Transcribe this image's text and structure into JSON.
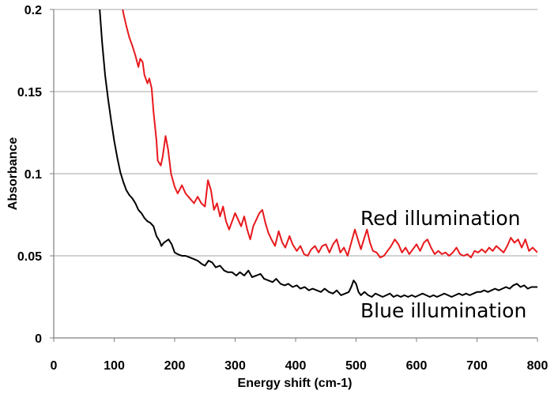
{
  "chart_data": {
    "type": "line",
    "title": "",
    "xlabel": "Energy shift (cm-1)",
    "ylabel": "Absorbance",
    "xlim": [
      0,
      800
    ],
    "ylim": [
      0,
      0.2
    ],
    "xticks": [
      0,
      100,
      200,
      300,
      400,
      500,
      600,
      700,
      800
    ],
    "yticks": [
      0,
      0.05,
      0.1,
      0.15,
      0.2
    ],
    "xtick_labels": [
      "0",
      "100",
      "200",
      "300",
      "400",
      "500",
      "600",
      "700",
      "800"
    ],
    "ytick_labels": [
      "0",
      "0.05",
      "0.1",
      "0.15",
      "0.2"
    ],
    "grid": "horizontal",
    "legend": "none",
    "annotations": [
      {
        "text": "Red illumination",
        "series": "Red illumination"
      },
      {
        "text": "Blue illumination",
        "series": "Blue illumination"
      }
    ],
    "series": [
      {
        "name": "Red illumination",
        "color": "#e8191d",
        "points": [
          [
            112,
            0.205
          ],
          [
            115,
            0.198
          ],
          [
            120,
            0.19
          ],
          [
            125,
            0.183
          ],
          [
            130,
            0.178
          ],
          [
            135,
            0.172
          ],
          [
            140,
            0.165
          ],
          [
            143,
            0.17
          ],
          [
            147,
            0.168
          ],
          [
            150,
            0.16
          ],
          [
            155,
            0.155
          ],
          [
            158,
            0.158
          ],
          [
            162,
            0.152
          ],
          [
            165,
            0.138
          ],
          [
            170,
            0.12
          ],
          [
            172,
            0.108
          ],
          [
            177,
            0.105
          ],
          [
            180,
            0.11
          ],
          [
            185,
            0.123
          ],
          [
            189,
            0.115
          ],
          [
            194,
            0.1
          ],
          [
            200,
            0.092
          ],
          [
            205,
            0.088
          ],
          [
            212,
            0.093
          ],
          [
            218,
            0.088
          ],
          [
            225,
            0.085
          ],
          [
            232,
            0.082
          ],
          [
            238,
            0.086
          ],
          [
            244,
            0.082
          ],
          [
            250,
            0.08
          ],
          [
            255,
            0.096
          ],
          [
            260,
            0.09
          ],
          [
            265,
            0.078
          ],
          [
            270,
            0.082
          ],
          [
            275,
            0.074
          ],
          [
            280,
            0.08
          ],
          [
            285,
            0.071
          ],
          [
            290,
            0.066
          ],
          [
            295,
            0.071
          ],
          [
            300,
            0.076
          ],
          [
            305,
            0.072
          ],
          [
            310,
            0.068
          ],
          [
            315,
            0.074
          ],
          [
            320,
            0.066
          ],
          [
            325,
            0.06
          ],
          [
            330,
            0.068
          ],
          [
            335,
            0.072
          ],
          [
            340,
            0.076
          ],
          [
            345,
            0.078
          ],
          [
            350,
            0.07
          ],
          [
            355,
            0.064
          ],
          [
            360,
            0.06
          ],
          [
            366,
            0.056
          ],
          [
            372,
            0.065
          ],
          [
            378,
            0.058
          ],
          [
            383,
            0.055
          ],
          [
            390,
            0.062
          ],
          [
            395,
            0.057
          ],
          [
            402,
            0.053
          ],
          [
            408,
            0.056
          ],
          [
            414,
            0.051
          ],
          [
            420,
            0.05
          ],
          [
            426,
            0.054
          ],
          [
            432,
            0.056
          ],
          [
            438,
            0.052
          ],
          [
            444,
            0.056
          ],
          [
            450,
            0.057
          ],
          [
            456,
            0.052
          ],
          [
            462,
            0.057
          ],
          [
            468,
            0.06
          ],
          [
            474,
            0.052
          ],
          [
            480,
            0.055
          ],
          [
            486,
            0.05
          ],
          [
            492,
            0.058
          ],
          [
            498,
            0.066
          ],
          [
            503,
            0.06
          ],
          [
            508,
            0.054
          ],
          [
            513,
            0.06
          ],
          [
            518,
            0.066
          ],
          [
            523,
            0.058
          ],
          [
            528,
            0.053
          ],
          [
            534,
            0.052
          ],
          [
            540,
            0.049
          ],
          [
            546,
            0.05
          ],
          [
            552,
            0.053
          ],
          [
            558,
            0.056
          ],
          [
            564,
            0.06
          ],
          [
            570,
            0.057
          ],
          [
            576,
            0.052
          ],
          [
            582,
            0.055
          ],
          [
            588,
            0.051
          ],
          [
            594,
            0.054
          ],
          [
            600,
            0.057
          ],
          [
            606,
            0.053
          ],
          [
            612,
            0.058
          ],
          [
            618,
            0.06
          ],
          [
            624,
            0.055
          ],
          [
            630,
            0.051
          ],
          [
            636,
            0.053
          ],
          [
            642,
            0.051
          ],
          [
            648,
            0.052
          ],
          [
            654,
            0.05
          ],
          [
            660,
            0.052
          ],
          [
            666,
            0.055
          ],
          [
            672,
            0.051
          ],
          [
            678,
            0.05
          ],
          [
            684,
            0.051
          ],
          [
            690,
            0.049
          ],
          [
            696,
            0.053
          ],
          [
            702,
            0.052
          ],
          [
            708,
            0.054
          ],
          [
            714,
            0.052
          ],
          [
            720,
            0.055
          ],
          [
            726,
            0.053
          ],
          [
            732,
            0.056
          ],
          [
            738,
            0.054
          ],
          [
            744,
            0.052
          ],
          [
            750,
            0.056
          ],
          [
            756,
            0.061
          ],
          [
            762,
            0.058
          ],
          [
            768,
            0.06
          ],
          [
            774,
            0.055
          ],
          [
            780,
            0.06
          ],
          [
            786,
            0.053
          ],
          [
            792,
            0.055
          ],
          [
            800,
            0.052
          ]
        ]
      },
      {
        "name": "Blue illumination",
        "color": "#000000",
        "points": [
          [
            75,
            0.205
          ],
          [
            80,
            0.18
          ],
          [
            85,
            0.16
          ],
          [
            90,
            0.145
          ],
          [
            95,
            0.132
          ],
          [
            100,
            0.12
          ],
          [
            105,
            0.11
          ],
          [
            110,
            0.101
          ],
          [
            115,
            0.095
          ],
          [
            120,
            0.09
          ],
          [
            125,
            0.087
          ],
          [
            130,
            0.085
          ],
          [
            135,
            0.082
          ],
          [
            140,
            0.078
          ],
          [
            145,
            0.076
          ],
          [
            150,
            0.073
          ],
          [
            155,
            0.071
          ],
          [
            160,
            0.07
          ],
          [
            165,
            0.068
          ],
          [
            170,
            0.062
          ],
          [
            175,
            0.059
          ],
          [
            178,
            0.056
          ],
          [
            182,
            0.058
          ],
          [
            186,
            0.059
          ],
          [
            190,
            0.06
          ],
          [
            195,
            0.057
          ],
          [
            200,
            0.052
          ],
          [
            205,
            0.051
          ],
          [
            212,
            0.05
          ],
          [
            218,
            0.05
          ],
          [
            225,
            0.049
          ],
          [
            232,
            0.048
          ],
          [
            238,
            0.047
          ],
          [
            245,
            0.045
          ],
          [
            250,
            0.044
          ],
          [
            256,
            0.047
          ],
          [
            262,
            0.046
          ],
          [
            268,
            0.043
          ],
          [
            275,
            0.044
          ],
          [
            282,
            0.041
          ],
          [
            288,
            0.04
          ],
          [
            295,
            0.04
          ],
          [
            302,
            0.038
          ],
          [
            308,
            0.04
          ],
          [
            315,
            0.038
          ],
          [
            322,
            0.041
          ],
          [
            328,
            0.037
          ],
          [
            335,
            0.038
          ],
          [
            342,
            0.039
          ],
          [
            348,
            0.036
          ],
          [
            355,
            0.035
          ],
          [
            362,
            0.034
          ],
          [
            368,
            0.036
          ],
          [
            375,
            0.033
          ],
          [
            382,
            0.032
          ],
          [
            388,
            0.033
          ],
          [
            395,
            0.031
          ],
          [
            402,
            0.032
          ],
          [
            408,
            0.03
          ],
          [
            415,
            0.031
          ],
          [
            422,
            0.029
          ],
          [
            428,
            0.03
          ],
          [
            435,
            0.029
          ],
          [
            442,
            0.028
          ],
          [
            448,
            0.03
          ],
          [
            455,
            0.028
          ],
          [
            462,
            0.027
          ],
          [
            468,
            0.029
          ],
          [
            475,
            0.026
          ],
          [
            482,
            0.027
          ],
          [
            488,
            0.028
          ],
          [
            492,
            0.031
          ],
          [
            496,
            0.035
          ],
          [
            500,
            0.033
          ],
          [
            504,
            0.028
          ],
          [
            508,
            0.026
          ],
          [
            514,
            0.028
          ],
          [
            520,
            0.026
          ],
          [
            526,
            0.025
          ],
          [
            532,
            0.027
          ],
          [
            538,
            0.026
          ],
          [
            544,
            0.025
          ],
          [
            550,
            0.026
          ],
          [
            556,
            0.027
          ],
          [
            562,
            0.025
          ],
          [
            568,
            0.026
          ],
          [
            574,
            0.025
          ],
          [
            580,
            0.026
          ],
          [
            586,
            0.025
          ],
          [
            592,
            0.026
          ],
          [
            598,
            0.025
          ],
          [
            604,
            0.026
          ],
          [
            610,
            0.027
          ],
          [
            616,
            0.026
          ],
          [
            622,
            0.025
          ],
          [
            628,
            0.026
          ],
          [
            634,
            0.025
          ],
          [
            640,
            0.026
          ],
          [
            646,
            0.027
          ],
          [
            652,
            0.026
          ],
          [
            658,
            0.025
          ],
          [
            664,
            0.026
          ],
          [
            670,
            0.027
          ],
          [
            676,
            0.026
          ],
          [
            682,
            0.027
          ],
          [
            688,
            0.026
          ],
          [
            694,
            0.027
          ],
          [
            700,
            0.028
          ],
          [
            706,
            0.028
          ],
          [
            712,
            0.029
          ],
          [
            718,
            0.028
          ],
          [
            724,
            0.029
          ],
          [
            730,
            0.03
          ],
          [
            736,
            0.029
          ],
          [
            742,
            0.03
          ],
          [
            748,
            0.031
          ],
          [
            754,
            0.03
          ],
          [
            760,
            0.032
          ],
          [
            766,
            0.033
          ],
          [
            772,
            0.031
          ],
          [
            778,
            0.032
          ],
          [
            784,
            0.03
          ],
          [
            790,
            0.031
          ],
          [
            800,
            0.031
          ]
        ]
      }
    ]
  }
}
